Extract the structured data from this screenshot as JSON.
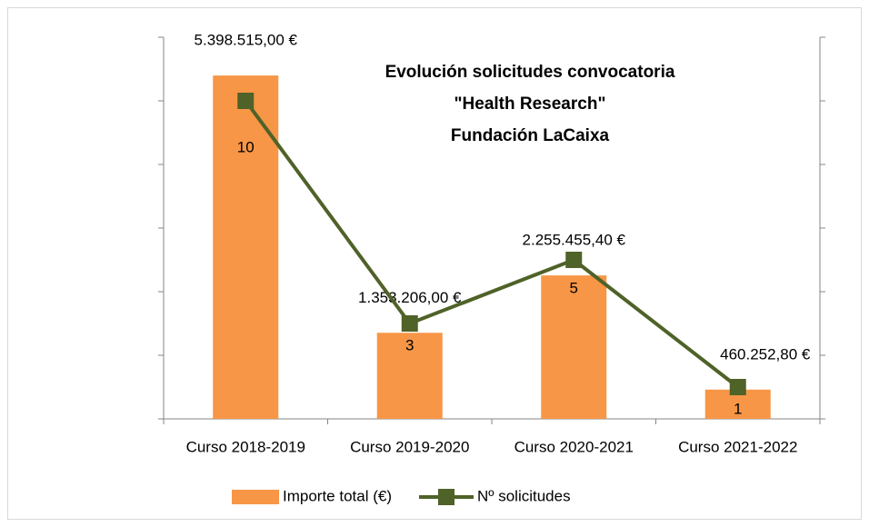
{
  "chart_data": {
    "type": "bar_line",
    "title": [
      "Evolución solicitudes convocatoria",
      "\"Health Research\"",
      "Fundación LaCaixa"
    ],
    "categories": [
      "Curso 2018-2019",
      "Curso 2019-2020",
      "Curso 2020-2021",
      "Curso 2021-2022"
    ],
    "series": [
      {
        "name": "Importe total (€)",
        "color": "#f79646",
        "type": "bar",
        "values": [
          5398515.0,
          1353206.0,
          2255455.4,
          460252.8
        ],
        "value_labels": [
          "5.398.515,00 €",
          "1.353.206,00 €",
          "2.255.455,40 €",
          "460.252,80 €"
        ]
      },
      {
        "name": "Nº solicitudes",
        "color": "#4f6228",
        "type": "line",
        "axis": "y2",
        "values": [
          10,
          3,
          5,
          1
        ]
      }
    ],
    "ylim": [
      0,
      6000000
    ],
    "yticks": [
      0,
      1000000,
      2000000,
      3000000,
      4000000,
      5000000,
      6000000
    ],
    "y2lim": [
      0,
      12
    ],
    "y2ticks": [
      0,
      2,
      4,
      6,
      8,
      10,
      12
    ],
    "legend": "bottom"
  }
}
